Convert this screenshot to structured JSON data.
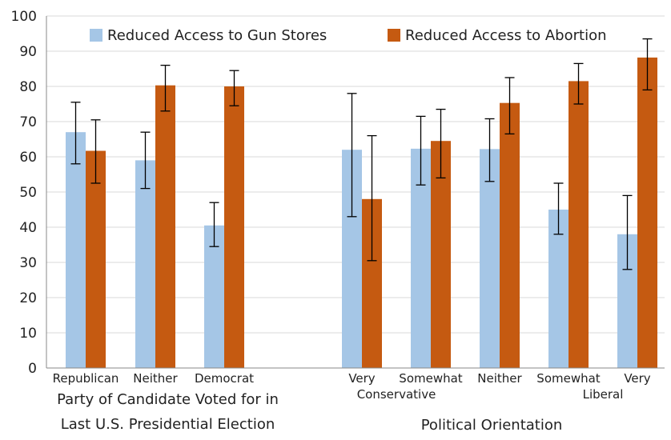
{
  "chart_data": {
    "type": "bar",
    "ylim": [
      0,
      100
    ],
    "yticks": [
      "0",
      "10",
      "20",
      "30",
      "40",
      "50",
      "60",
      "70",
      "80",
      "90",
      "100"
    ],
    "grid": true,
    "legend_position": "top",
    "groups": [
      {
        "label_lines": [
          "Party of Candidate Voted for in",
          "Last U.S. Presidential Election"
        ],
        "categories": [
          {
            "label_lines": [
              "Republican"
            ]
          },
          {
            "label_lines": [
              "Neither"
            ]
          },
          {
            "label_lines": [
              "Democrat"
            ]
          }
        ]
      },
      {
        "label_lines": [
          "Political Orientation"
        ],
        "categories": [
          {
            "label_lines": [
              "Very"
            ]
          },
          {
            "label_lines": [
              "Somewhat"
            ]
          },
          {
            "label_lines": [
              "Neither"
            ]
          },
          {
            "label_lines": [
              "Somewhat"
            ]
          },
          {
            "label_lines": [
              "Very"
            ]
          }
        ],
        "sub_labels": [
          {
            "text": "Conservative",
            "span": [
              0,
              1
            ]
          },
          {
            "text": "Liberal",
            "span": [
              3,
              4
            ]
          }
        ]
      }
    ],
    "series": [
      {
        "name": "Reduced Access to Gun Stores",
        "color": "#a5c6e6",
        "values": [
          67,
          59,
          40.5,
          62,
          62.3,
          62.2,
          45,
          38
        ],
        "error_low": [
          58,
          51,
          34.5,
          43,
          52,
          53,
          38,
          28
        ],
        "error_high": [
          75.5,
          67,
          47,
          78,
          71.5,
          70.8,
          52.5,
          49
        ]
      },
      {
        "name": "Reduced Access to Abortion",
        "color": "#c55a11",
        "values": [
          61.7,
          80.3,
          80,
          48,
          64.5,
          75.3,
          81.5,
          88.2
        ],
        "error_low": [
          52.5,
          73,
          74.5,
          30.5,
          54,
          66.5,
          75,
          79
        ],
        "error_high": [
          70.5,
          86,
          84.5,
          66,
          73.5,
          82.5,
          86.5,
          93.5
        ]
      }
    ]
  }
}
